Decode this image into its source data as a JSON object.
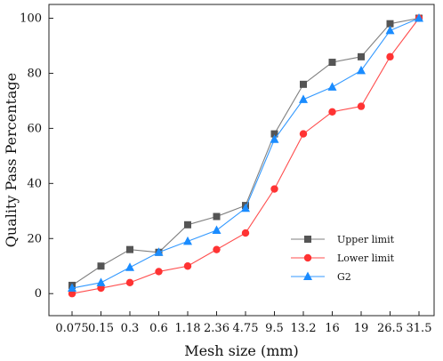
{
  "chart_data": {
    "type": "line",
    "title": "",
    "xlabel": "Mesh size (mm)",
    "ylabel": "Quality Pass Percentage",
    "categories": [
      "0.075",
      "0.15",
      "0.3",
      "0.6",
      "1.18",
      "2.36",
      "4.75",
      "9.5",
      "13.2",
      "16",
      "19",
      "26.5",
      "31.5"
    ],
    "x_tick_labels": [
      "0.075",
      "0.15",
      "0.3",
      "0.6",
      "1.18",
      "2.36",
      "4.75",
      "9.5",
      "13.2",
      "16",
      "19",
      "26.5",
      "31.5"
    ],
    "y_ticks": [
      0,
      20,
      40,
      60,
      80,
      100
    ],
    "ylim": [
      -8,
      105
    ],
    "grid": false,
    "legend_position": "lower-right",
    "series": [
      {
        "name": "Upper limit",
        "values": [
          3,
          10,
          16,
          15,
          25,
          28,
          32,
          58,
          76,
          84,
          86,
          98,
          100
        ],
        "color": "#7f7f7f",
        "marker_color": "#555555",
        "marker": "square"
      },
      {
        "name": "Lower limit",
        "values": [
          0,
          2,
          4,
          8,
          10,
          16,
          22,
          38,
          58,
          66,
          68,
          86,
          100
        ],
        "color": "#ff4d4d",
        "marker_color": "#ff3333",
        "marker": "circle"
      },
      {
        "name": "G2",
        "values": [
          2,
          4,
          9.5,
          15,
          19,
          23,
          31,
          56,
          70.5,
          75,
          81,
          95.5,
          100
        ],
        "color": "#3399ff",
        "marker_color": "#1a8cff",
        "marker": "triangle"
      }
    ]
  }
}
